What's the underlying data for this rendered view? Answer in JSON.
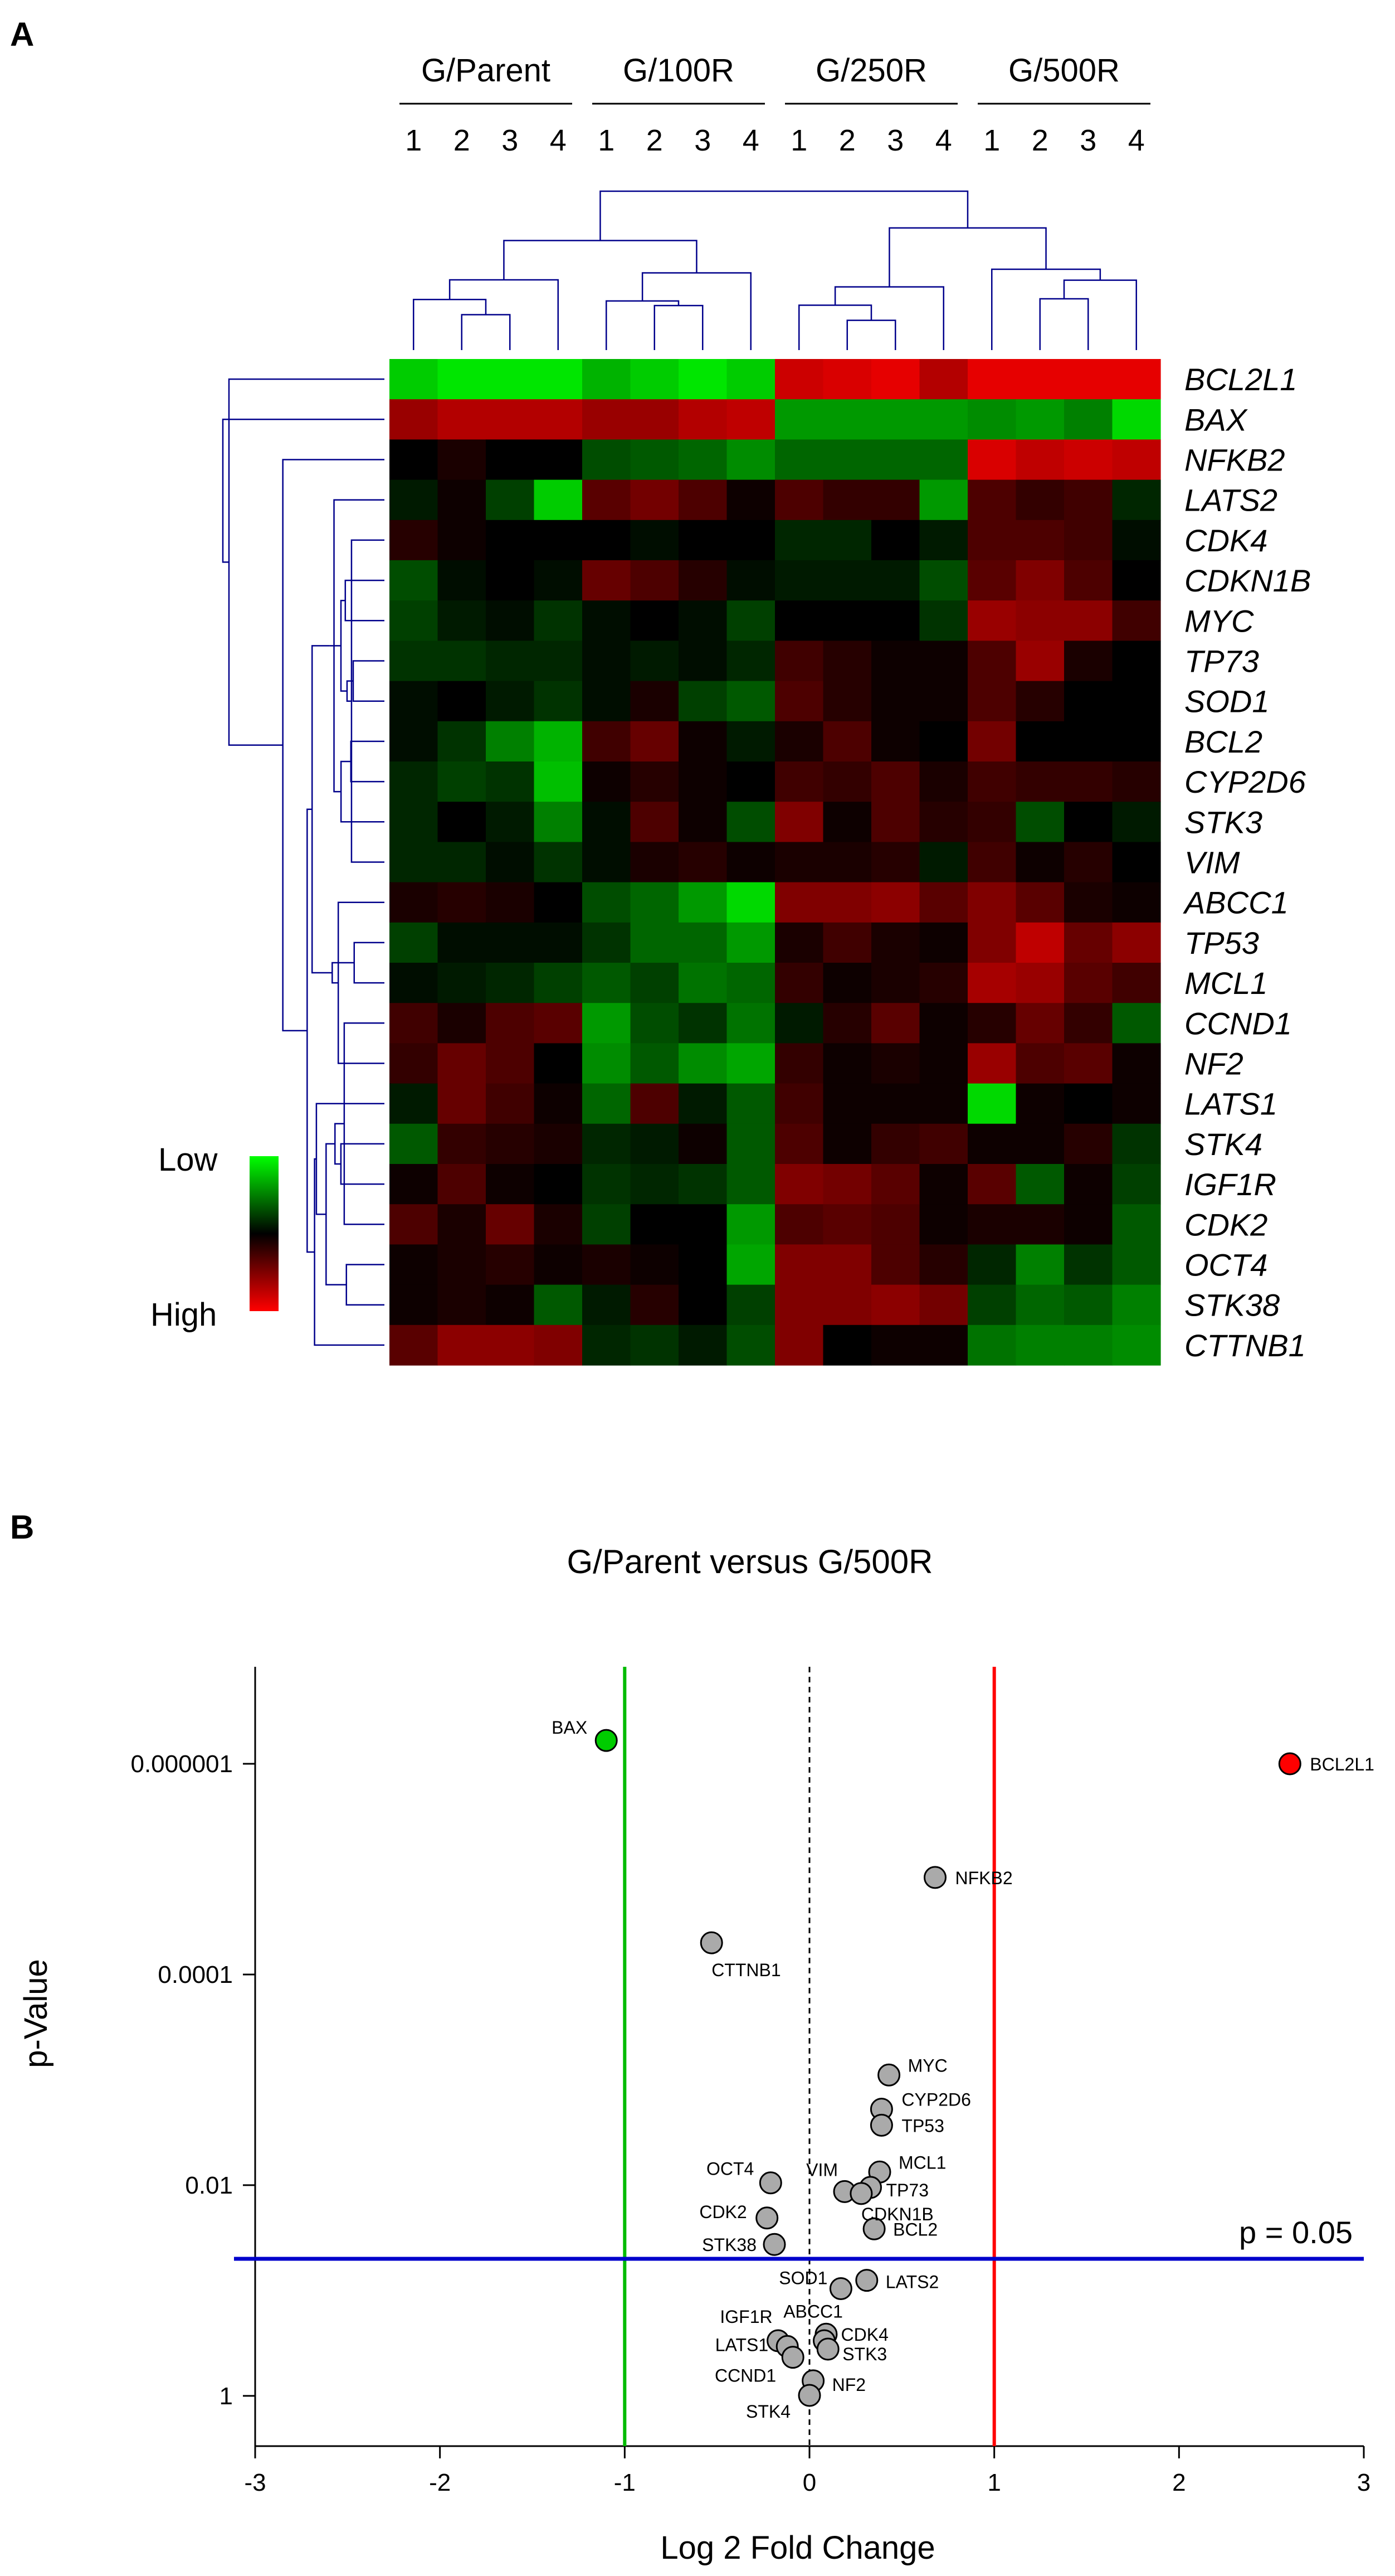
{
  "panel_a_label": "A",
  "panel_b_label": "B",
  "chart_data": [
    {
      "type": "heatmap",
      "groups": [
        "G/Parent",
        "G/100R",
        "G/250R",
        "G/500R"
      ],
      "replicates": [
        "1",
        "2",
        "3",
        "4"
      ],
      "genes": [
        "BCL2L1",
        "BAX",
        "NFKB2",
        "LATS2",
        "CDK4",
        "CDKN1B",
        "MYC",
        "TP73",
        "SOD1",
        "BCL2",
        "CYP2D6",
        "STK3",
        "VIM",
        "ABCC1",
        "TP53",
        "MCL1",
        "CCND1",
        "NF2",
        "LATS1",
        "STK4",
        "IGF1R",
        "CDK2",
        "OCT4",
        "STK38",
        "CTTNB1"
      ],
      "scale": {
        "low_label": "Low",
        "high_label": "High",
        "low_color": "#00ff00",
        "mid_color": "#000000",
        "high_color": "#ff0000"
      },
      "values": [
        [
          -0.8,
          -0.9,
          -0.9,
          -0.9,
          -0.7,
          -0.8,
          -0.9,
          -0.8,
          0.8,
          0.85,
          0.9,
          0.7,
          0.9,
          0.9,
          0.9,
          0.9
        ],
        [
          0.6,
          0.7,
          0.7,
          0.7,
          0.6,
          0.6,
          0.7,
          0.75,
          -0.6,
          -0.6,
          -0.6,
          -0.6,
          -0.55,
          -0.6,
          -0.5,
          -0.85
        ],
        [
          0.0,
          0.1,
          0.0,
          0.0,
          -0.3,
          -0.35,
          -0.4,
          -0.55,
          -0.4,
          -0.4,
          -0.4,
          -0.4,
          0.85,
          0.75,
          0.8,
          0.75
        ],
        [
          -0.1,
          0.05,
          -0.25,
          -0.8,
          0.35,
          0.45,
          0.3,
          0.05,
          0.3,
          0.2,
          0.2,
          -0.6,
          0.3,
          0.2,
          0.25,
          -0.15
        ],
        [
          0.15,
          0.05,
          0.0,
          0.0,
          0.0,
          -0.05,
          0.0,
          0.0,
          -0.15,
          -0.15,
          0.0,
          -0.1,
          0.3,
          0.3,
          0.25,
          -0.05
        ],
        [
          -0.3,
          -0.05,
          0.0,
          -0.05,
          0.4,
          0.3,
          0.15,
          -0.05,
          -0.1,
          -0.1,
          -0.1,
          -0.3,
          0.35,
          0.5,
          0.3,
          0.0
        ],
        [
          -0.25,
          -0.1,
          -0.05,
          -0.2,
          -0.05,
          0.0,
          -0.05,
          -0.25,
          0.0,
          0.0,
          0.0,
          -0.2,
          0.6,
          0.55,
          0.55,
          0.25
        ],
        [
          -0.2,
          -0.2,
          -0.15,
          -0.15,
          -0.05,
          -0.1,
          -0.05,
          -0.15,
          0.25,
          0.15,
          0.05,
          0.05,
          0.3,
          0.6,
          0.1,
          0.0
        ],
        [
          -0.05,
          0.0,
          -0.1,
          -0.2,
          -0.05,
          0.1,
          -0.25,
          -0.35,
          0.3,
          0.15,
          0.05,
          0.05,
          0.3,
          0.15,
          0.0,
          0.0
        ],
        [
          -0.05,
          -0.2,
          -0.5,
          -0.7,
          0.25,
          0.4,
          0.05,
          -0.1,
          0.1,
          0.3,
          0.05,
          0.0,
          0.45,
          0.0,
          0.0,
          0.0
        ],
        [
          -0.15,
          -0.25,
          -0.2,
          -0.75,
          0.05,
          0.15,
          0.05,
          0.0,
          0.25,
          0.2,
          0.3,
          0.1,
          0.25,
          0.2,
          0.2,
          0.15
        ],
        [
          -0.15,
          0.0,
          -0.1,
          -0.5,
          -0.05,
          0.3,
          0.05,
          -0.3,
          0.5,
          0.05,
          0.3,
          0.15,
          0.2,
          -0.3,
          0.0,
          -0.1
        ],
        [
          -0.15,
          -0.15,
          -0.05,
          -0.2,
          -0.05,
          0.1,
          0.15,
          0.05,
          0.1,
          0.1,
          0.15,
          -0.1,
          0.25,
          0.05,
          0.15,
          0.0
        ],
        [
          0.1,
          0.15,
          0.1,
          0.0,
          -0.3,
          -0.4,
          -0.6,
          -0.85,
          0.5,
          0.5,
          0.55,
          0.35,
          0.5,
          0.35,
          0.1,
          0.05
        ],
        [
          -0.25,
          -0.05,
          -0.05,
          -0.05,
          -0.2,
          -0.4,
          -0.4,
          -0.6,
          0.1,
          0.25,
          0.1,
          0.05,
          0.5,
          0.75,
          0.4,
          0.55
        ],
        [
          -0.05,
          -0.1,
          -0.15,
          -0.25,
          -0.35,
          -0.25,
          -0.45,
          -0.4,
          0.2,
          0.05,
          0.1,
          0.15,
          0.65,
          0.6,
          0.35,
          0.25
        ],
        [
          0.25,
          0.1,
          0.3,
          0.35,
          -0.6,
          -0.3,
          -0.2,
          -0.45,
          -0.1,
          0.15,
          0.35,
          0.05,
          0.15,
          0.4,
          0.2,
          -0.35
        ],
        [
          0.2,
          0.4,
          0.3,
          0.0,
          -0.55,
          -0.35,
          -0.55,
          -0.65,
          0.2,
          0.05,
          0.1,
          0.05,
          0.6,
          0.3,
          0.35,
          0.05
        ],
        [
          -0.1,
          0.4,
          0.25,
          0.05,
          -0.4,
          0.3,
          -0.1,
          -0.35,
          0.25,
          0.05,
          0.05,
          0.05,
          -0.85,
          0.05,
          0.0,
          0.05
        ],
        [
          -0.35,
          0.2,
          0.15,
          0.1,
          -0.15,
          -0.1,
          0.05,
          -0.35,
          0.3,
          0.05,
          0.2,
          0.25,
          0.05,
          0.05,
          0.15,
          -0.2
        ],
        [
          0.05,
          0.3,
          0.05,
          0.0,
          -0.2,
          -0.15,
          -0.2,
          -0.35,
          0.5,
          0.45,
          0.35,
          0.05,
          0.35,
          -0.35,
          0.05,
          -0.25
        ],
        [
          0.3,
          0.1,
          0.4,
          0.1,
          -0.25,
          0.0,
          0.0,
          -0.6,
          0.3,
          0.35,
          0.3,
          0.05,
          0.1,
          0.1,
          0.05,
          -0.35
        ],
        [
          0.05,
          0.1,
          0.15,
          0.05,
          0.1,
          0.05,
          0.0,
          -0.65,
          0.5,
          0.5,
          0.3,
          0.15,
          -0.15,
          -0.5,
          -0.2,
          -0.35
        ],
        [
          0.05,
          0.1,
          0.05,
          -0.35,
          -0.1,
          0.15,
          0.0,
          -0.25,
          0.5,
          0.5,
          0.55,
          0.45,
          -0.25,
          -0.4,
          -0.35,
          -0.5
        ],
        [
          0.35,
          0.55,
          0.55,
          0.5,
          -0.15,
          -0.2,
          -0.1,
          -0.3,
          0.5,
          0.0,
          0.05,
          0.05,
          -0.45,
          -0.5,
          -0.5,
          -0.55
        ]
      ],
      "row_dendrogram": true,
      "column_dendrogram": true
    },
    {
      "type": "scatter",
      "title": "G/Parent versus G/500R",
      "xlabel": "Log 2 Fold Change",
      "ylabel": "p-Value",
      "xlim": [
        -3,
        3
      ],
      "y_scale": "log",
      "y_inverted": true,
      "ylim": [
        3.0,
        1.2e-07
      ],
      "xticks": [
        "-3",
        "-2",
        "-1",
        "0",
        "1",
        "2",
        "3"
      ],
      "yticks": [
        {
          "value": 1e-06,
          "label": "0.000001"
        },
        {
          "value": 0.0001,
          "label": "0.0001"
        },
        {
          "value": 0.01,
          "label": "0.01"
        },
        {
          "value": 1,
          "label": "1"
        }
      ],
      "thresholds": {
        "p_line": {
          "value": 0.05,
          "label": "p = 0.05",
          "color": "#0000cc"
        },
        "fc_low": {
          "value": -1,
          "color": "#00bb00"
        },
        "fc_high": {
          "value": 1,
          "color": "#ff0000"
        },
        "zero_line": 0
      },
      "point_colors": {
        "up": "#ff0000",
        "down": "#00cc00",
        "ns": "#aaaaaa"
      },
      "points": [
        {
          "gene": "BCL2L1",
          "x": 2.6,
          "y": 1e-06,
          "status": "up"
        },
        {
          "gene": "BAX",
          "x": -1.1,
          "y": 6e-07,
          "status": "down"
        },
        {
          "gene": "NFKB2",
          "x": 0.68,
          "y": 1.2e-05,
          "status": "ns"
        },
        {
          "gene": "CTTNB1",
          "x": -0.53,
          "y": 5e-05,
          "status": "ns"
        },
        {
          "gene": "MYC",
          "x": 0.43,
          "y": 0.0009,
          "status": "ns"
        },
        {
          "gene": "CYP2D6",
          "x": 0.39,
          "y": 0.0019,
          "status": "ns"
        },
        {
          "gene": "TP53",
          "x": 0.39,
          "y": 0.0027,
          "status": "ns"
        },
        {
          "gene": "MCL1",
          "x": 0.38,
          "y": 0.0075,
          "status": "ns"
        },
        {
          "gene": "VIM",
          "x": 0.19,
          "y": 0.0115,
          "status": "ns"
        },
        {
          "gene": "TP73",
          "x": 0.33,
          "y": 0.0105,
          "status": "ns"
        },
        {
          "gene": "CDKN1B",
          "x": 0.28,
          "y": 0.012,
          "status": "ns"
        },
        {
          "gene": "BCL2",
          "x": 0.35,
          "y": 0.026,
          "status": "ns"
        },
        {
          "gene": "OCT4",
          "x": -0.21,
          "y": 0.0095,
          "status": "ns"
        },
        {
          "gene": "CDK2",
          "x": -0.23,
          "y": 0.0205,
          "status": "ns"
        },
        {
          "gene": "STK38",
          "x": -0.19,
          "y": 0.0365,
          "status": "ns"
        },
        {
          "gene": "SOD1",
          "x": 0.17,
          "y": 0.096,
          "status": "ns"
        },
        {
          "gene": "LATS2",
          "x": 0.31,
          "y": 0.08,
          "status": "ns"
        },
        {
          "gene": "ABCC1",
          "x": 0.09,
          "y": 0.26,
          "status": "ns"
        },
        {
          "gene": "CDK4",
          "x": 0.08,
          "y": 0.3,
          "status": "ns"
        },
        {
          "gene": "STK3",
          "x": 0.1,
          "y": 0.36,
          "status": "ns"
        },
        {
          "gene": "IGF1R",
          "x": -0.17,
          "y": 0.3,
          "status": "ns"
        },
        {
          "gene": "LATS1",
          "x": -0.12,
          "y": 0.34,
          "status": "ns"
        },
        {
          "gene": "CCND1",
          "x": -0.09,
          "y": 0.43,
          "status": "ns"
        },
        {
          "gene": "NF2",
          "x": 0.02,
          "y": 0.72,
          "status": "ns"
        },
        {
          "gene": "STK4",
          "x": 0.0,
          "y": 0.99,
          "status": "ns"
        }
      ]
    }
  ]
}
